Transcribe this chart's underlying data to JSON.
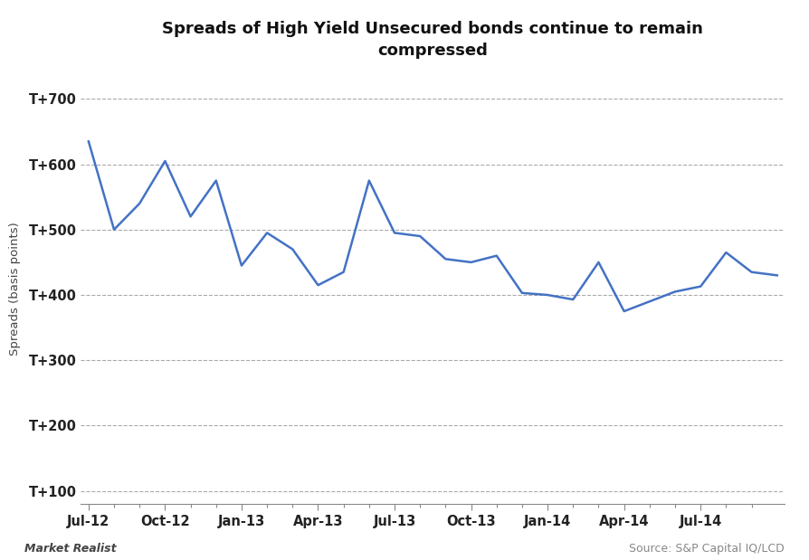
{
  "title": "Spreads of High Yield Unsecured bonds continue to remain\ncompressed",
  "ylabel": "Spreads (basis points)",
  "line_color": "#4472C4",
  "background_color": "#ffffff",
  "grid_color": "#aaaaaa",
  "x_labels": [
    "Jul-12",
    "Oct-12",
    "Jan-13",
    "Apr-13",
    "Jul-13",
    "Oct-13",
    "Jan-14",
    "Apr-14",
    "Jul-14"
  ],
  "y_ticks": [
    100,
    200,
    300,
    400,
    500,
    600,
    700
  ],
  "y_tick_labels": [
    "T+100",
    "T+200",
    "T+300",
    "T+400",
    "T+500",
    "T+600",
    "T+700"
  ],
  "ylim": [
    80,
    740
  ],
  "x_values": [
    0,
    1,
    2,
    3,
    4,
    5,
    6,
    7,
    8,
    9,
    10,
    11,
    12,
    13,
    14,
    15,
    16,
    17,
    18,
    19,
    20,
    21,
    22,
    23,
    24,
    25,
    26,
    27
  ],
  "y_values": [
    635,
    500,
    540,
    605,
    520,
    575,
    445,
    495,
    470,
    415,
    435,
    575,
    495,
    490,
    455,
    450,
    460,
    403,
    400,
    393,
    450,
    375,
    390,
    405,
    413,
    465,
    435,
    430
  ],
  "x_tick_positions": [
    0,
    3,
    6,
    9,
    12,
    15,
    18,
    21,
    24
  ],
  "x_minor_ticks": [
    1,
    2,
    4,
    5,
    7,
    8,
    10,
    11,
    13,
    14,
    16,
    17,
    19,
    20,
    22,
    23,
    25,
    26
  ],
  "footer_left": "Market Realist",
  "footer_right": "Source: S&P Capital IQ/LCD",
  "title_fontsize": 13,
  "label_fontsize": 9.5,
  "tick_fontsize": 10.5,
  "footer_fontsize": 9
}
